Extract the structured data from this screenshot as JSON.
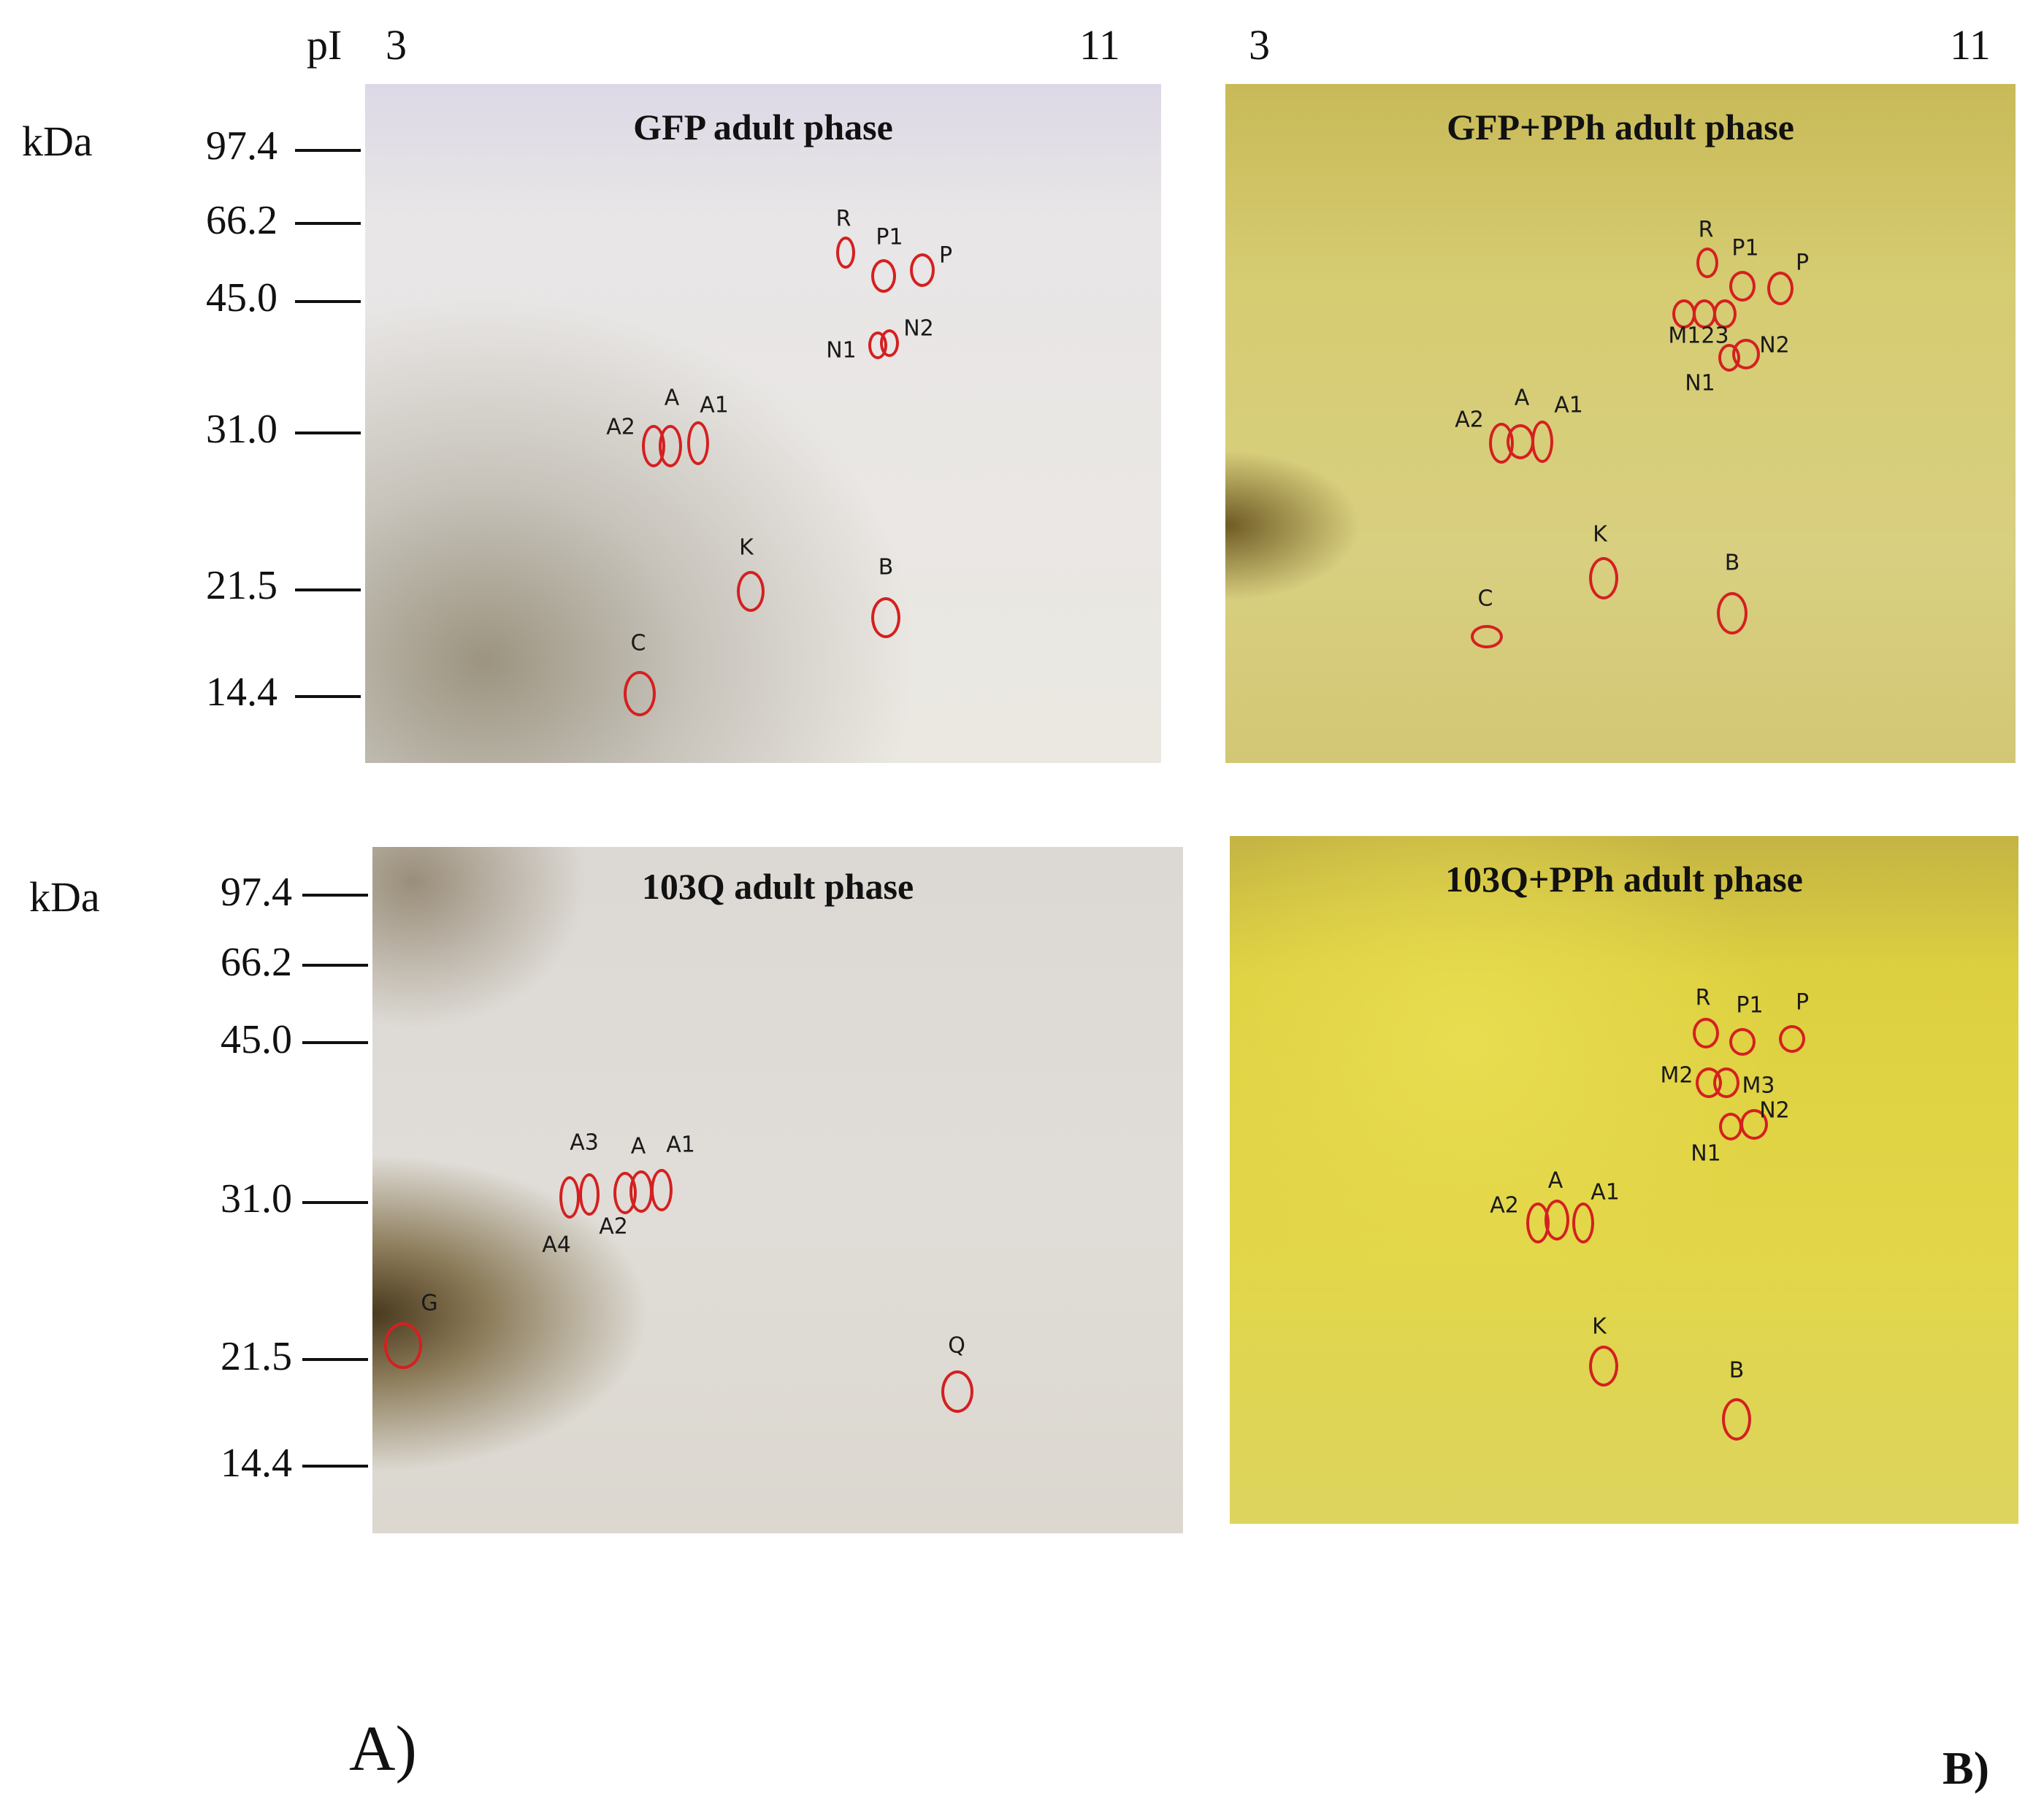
{
  "axis": {
    "pi_label": "pI",
    "kda_label": "kDa",
    "pi_min": "3",
    "pi_max": "11"
  },
  "mw_markers_top": [
    "97.4",
    "66.2",
    "45.0",
    "31.0",
    "21.5",
    "14.4"
  ],
  "mw_markers_bottom": [
    "97.4",
    "66.2",
    "45.0",
    "31.0",
    "21.5",
    "14.4"
  ],
  "panels": {
    "a_label": "A)",
    "b_label": "B)"
  },
  "gels": [
    {
      "id": "gfp",
      "title": "GFP adult phase",
      "background": "#e6e2e8",
      "spots": [
        "R",
        "P1",
        "P",
        "N1",
        "N2",
        "A",
        "A1",
        "A2",
        "K",
        "B",
        "C"
      ]
    },
    {
      "id": "gfp-pph",
      "title": "GFP+PPh adult phase",
      "background": "#d8cc62",
      "spots": [
        "R",
        "P1",
        "P",
        "M123",
        "N1",
        "N2",
        "A",
        "A1",
        "A2",
        "K",
        "B",
        "C"
      ]
    },
    {
      "id": "103q",
      "title": "103Q adult phase",
      "background": "#dedad6",
      "spots": [
        "A3",
        "A",
        "A1",
        "A4",
        "A2",
        "G",
        "Q"
      ]
    },
    {
      "id": "103q-pph",
      "title": "103Q+PPh adult phase",
      "background": "#e0d64a",
      "spots": [
        "R",
        "P1",
        "P",
        "M2",
        "M3",
        "N1",
        "N2",
        "A",
        "A1",
        "A2",
        "K",
        "B"
      ]
    }
  ],
  "colors": {
    "spot_circle": "#d42020",
    "text": "#111111"
  }
}
